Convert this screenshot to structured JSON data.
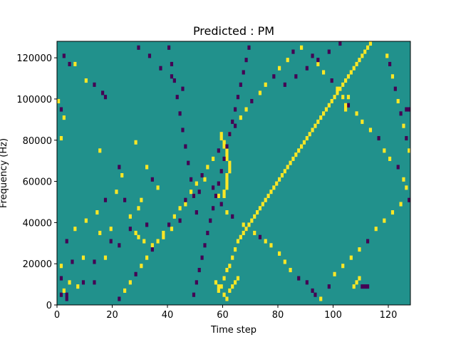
{
  "chart_data": {
    "type": "heatmap",
    "title": "Predicted : PM",
    "xlabel": "Time step",
    "ylabel": "Frequency (Hz)",
    "xlim": [
      0,
      128
    ],
    "ylim": [
      0,
      128000
    ],
    "x_ticks": [
      0,
      20,
      40,
      60,
      80,
      100,
      120
    ],
    "y_ticks": [
      0,
      20000,
      40000,
      60000,
      80000,
      100000,
      120000
    ],
    "n_time_steps": 128,
    "n_freq_bins": 64,
    "value_levels": [
      -1,
      0,
      1
    ],
    "colors": {
      "neg": "#440154",
      "zero": "#21918c",
      "pos": "#fde725"
    },
    "cells": [
      {
        "t": 2,
        "f": 60,
        "v": -1
      },
      {
        "t": 3,
        "f": 1,
        "v": -1
      },
      {
        "t": 3,
        "f": 2,
        "v": -1
      },
      {
        "t": 1,
        "f": 2,
        "v": -1
      },
      {
        "t": 4,
        "f": 58,
        "v": -1
      },
      {
        "t": 6,
        "f": 58,
        "v": 1
      },
      {
        "t": 10,
        "f": 54,
        "v": 1
      },
      {
        "t": 13,
        "f": 53,
        "v": -1
      },
      {
        "t": 16,
        "f": 51,
        "v": -1
      },
      {
        "t": 17,
        "f": 50,
        "v": -1
      },
      {
        "t": 0,
        "f": 49,
        "v": 1
      },
      {
        "t": 1,
        "f": 47,
        "v": -1
      },
      {
        "t": 2,
        "f": 45,
        "v": 1
      },
      {
        "t": 1,
        "f": 40,
        "v": 1
      },
      {
        "t": 15,
        "f": 37,
        "v": 1
      },
      {
        "t": 22,
        "f": 33,
        "v": -1
      },
      {
        "t": 28,
        "f": 39,
        "v": 1
      },
      {
        "t": 32,
        "f": 33,
        "v": 1
      },
      {
        "t": 34,
        "f": 30,
        "v": -1
      },
      {
        "t": 36,
        "f": 28,
        "v": 1
      },
      {
        "t": 30,
        "f": 25,
        "v": 1
      },
      {
        "t": 29,
        "f": 23,
        "v": 1
      },
      {
        "t": 32,
        "f": 19,
        "v": -1
      },
      {
        "t": 26,
        "f": 18,
        "v": -1
      },
      {
        "t": 22,
        "f": 14,
        "v": -1
      },
      {
        "t": 19,
        "f": 18,
        "v": 1
      },
      {
        "t": 15,
        "f": 17,
        "v": 1
      },
      {
        "t": 19,
        "f": 15,
        "v": -1
      },
      {
        "t": 17,
        "f": 11,
        "v": 1
      },
      {
        "t": 13,
        "f": 10,
        "v": -1
      },
      {
        "t": 9,
        "f": 11,
        "v": 1
      },
      {
        "t": 5,
        "f": 10,
        "v": -1
      },
      {
        "t": 1,
        "f": 9,
        "v": 1
      },
      {
        "t": 1,
        "f": 6,
        "v": -1
      },
      {
        "t": 4,
        "f": 5,
        "v": 1
      },
      {
        "t": 7,
        "f": 4,
        "v": 1
      },
      {
        "t": 9,
        "f": 5,
        "v": -1
      },
      {
        "t": 13,
        "f": 5,
        "v": -1
      },
      {
        "t": 2,
        "f": 3,
        "v": 1
      },
      {
        "t": 3,
        "f": 15,
        "v": -1
      },
      {
        "t": 6,
        "f": 18,
        "v": 1
      },
      {
        "t": 10,
        "f": 20,
        "v": 1
      },
      {
        "t": 14,
        "f": 22,
        "v": 1
      },
      {
        "t": 17,
        "f": 25,
        "v": -1
      },
      {
        "t": 21,
        "f": 27,
        "v": 1
      },
      {
        "t": 23,
        "f": 31,
        "v": 1
      },
      {
        "t": 24,
        "f": 25,
        "v": -1
      },
      {
        "t": 26,
        "f": 21,
        "v": 1
      },
      {
        "t": 28,
        "f": 17,
        "v": 1
      },
      {
        "t": 29,
        "f": 16,
        "v": 1
      },
      {
        "t": 31,
        "f": 15,
        "v": 1
      },
      {
        "t": 34,
        "f": 14,
        "v": 1
      },
      {
        "t": 38,
        "f": 16,
        "v": 1
      },
      {
        "t": 41,
        "f": 18,
        "v": 1
      },
      {
        "t": 44,
        "f": 20,
        "v": -1
      },
      {
        "t": 46,
        "f": 24,
        "v": 1
      },
      {
        "t": 49,
        "f": 26,
        "v": 1
      },
      {
        "t": 51,
        "f": 27,
        "v": -1
      },
      {
        "t": 53,
        "f": 30,
        "v": 1
      },
      {
        "t": 56,
        "f": 28,
        "v": -1
      },
      {
        "t": 58,
        "f": 26,
        "v": 1
      },
      {
        "t": 59,
        "f": 24,
        "v": -1
      },
      {
        "t": 61,
        "f": 22,
        "v": 1
      },
      {
        "t": 63,
        "f": 21,
        "v": -1
      },
      {
        "t": 67,
        "f": 19,
        "v": 1
      },
      {
        "t": 68,
        "f": 18,
        "v": -1
      },
      {
        "t": 71,
        "f": 17,
        "v": 1
      },
      {
        "t": 73,
        "f": 16,
        "v": -1
      },
      {
        "t": 75,
        "f": 15,
        "v": 1
      },
      {
        "t": 77,
        "f": 14,
        "v": 1
      },
      {
        "t": 80,
        "f": 12,
        "v": 1
      },
      {
        "t": 82,
        "f": 10,
        "v": 1
      },
      {
        "t": 84,
        "f": 8,
        "v": 1
      },
      {
        "t": 87,
        "f": 6,
        "v": -1
      },
      {
        "t": 90,
        "f": 5,
        "v": -1
      },
      {
        "t": 92,
        "f": 3,
        "v": -1
      },
      {
        "t": 93,
        "f": 2,
        "v": -1
      },
      {
        "t": 95,
        "f": 1,
        "v": 1
      },
      {
        "t": 98,
        "f": 4,
        "v": -1
      },
      {
        "t": 100,
        "f": 7,
        "v": 1
      },
      {
        "t": 103,
        "f": 9,
        "v": 1
      },
      {
        "t": 106,
        "f": 11,
        "v": 1
      },
      {
        "t": 109,
        "f": 13,
        "v": 1
      },
      {
        "t": 112,
        "f": 15,
        "v": -1
      },
      {
        "t": 115,
        "f": 18,
        "v": 1
      },
      {
        "t": 118,
        "f": 20,
        "v": 1
      },
      {
        "t": 121,
        "f": 22,
        "v": 1
      },
      {
        "t": 124,
        "f": 24,
        "v": 1
      },
      {
        "t": 127,
        "f": 25,
        "v": -1
      },
      {
        "t": 126,
        "f": 28,
        "v": 1
      },
      {
        "t": 125,
        "f": 30,
        "v": 1
      },
      {
        "t": 123,
        "f": 33,
        "v": -1
      },
      {
        "t": 120,
        "f": 35,
        "v": 1
      },
      {
        "t": 118,
        "f": 37,
        "v": 1
      },
      {
        "t": 116,
        "f": 40,
        "v": -1
      },
      {
        "t": 113,
        "f": 42,
        "v": 1
      },
      {
        "t": 110,
        "f": 44,
        "v": 1
      },
      {
        "t": 108,
        "f": 46,
        "v": 1
      },
      {
        "t": 105,
        "f": 48,
        "v": -1
      },
      {
        "t": 103,
        "f": 50,
        "v": 1
      },
      {
        "t": 101,
        "f": 52,
        "v": 1
      },
      {
        "t": 99,
        "f": 54,
        "v": -1
      },
      {
        "t": 96,
        "f": 56,
        "v": 1
      },
      {
        "t": 94,
        "f": 58,
        "v": 1
      },
      {
        "t": 92,
        "f": 60,
        "v": -1
      },
      {
        "t": 88,
        "f": 62,
        "v": 1
      },
      {
        "t": 85,
        "f": 61,
        "v": -1
      },
      {
        "t": 83,
        "f": 59,
        "v": 1
      },
      {
        "t": 80,
        "f": 57,
        "v": 1
      },
      {
        "t": 78,
        "f": 55,
        "v": -1
      },
      {
        "t": 75,
        "f": 53,
        "v": 1
      },
      {
        "t": 73,
        "f": 51,
        "v": 1
      },
      {
        "t": 70,
        "f": 49,
        "v": -1
      },
      {
        "t": 68,
        "f": 47,
        "v": 1
      },
      {
        "t": 66,
        "f": 45,
        "v": 1
      },
      {
        "t": 64,
        "f": 43,
        "v": -1
      },
      {
        "t": 62,
        "f": 41,
        "v": 1
      },
      {
        "t": 60,
        "f": 39,
        "v": 1
      },
      {
        "t": 58,
        "f": 37,
        "v": -1
      },
      {
        "t": 56,
        "f": 35,
        "v": 1
      },
      {
        "t": 54,
        "f": 33,
        "v": 1
      },
      {
        "t": 52,
        "f": 31,
        "v": -1
      },
      {
        "t": 50,
        "f": 29,
        "v": 1
      },
      {
        "t": 48,
        "f": 27,
        "v": 1
      },
      {
        "t": 46,
        "f": 25,
        "v": -1
      },
      {
        "t": 44,
        "f": 23,
        "v": 1
      },
      {
        "t": 42,
        "f": 21,
        "v": 1
      },
      {
        "t": 40,
        "f": 19,
        "v": -1
      },
      {
        "t": 38,
        "f": 17,
        "v": 1
      },
      {
        "t": 36,
        "f": 15,
        "v": 1
      },
      {
        "t": 34,
        "f": 13,
        "v": -1
      },
      {
        "t": 32,
        "f": 11,
        "v": 1
      },
      {
        "t": 30,
        "f": 9,
        "v": 1
      },
      {
        "t": 28,
        "f": 7,
        "v": -1
      },
      {
        "t": 26,
        "f": 5,
        "v": 1
      },
      {
        "t": 24,
        "f": 3,
        "v": 1
      },
      {
        "t": 22,
        "f": 1,
        "v": -1
      },
      {
        "t": 59,
        "f": 4,
        "v": 1
      },
      {
        "t": 60,
        "f": 6,
        "v": 1
      },
      {
        "t": 61,
        "f": 8,
        "v": 1
      },
      {
        "t": 62,
        "f": 9,
        "v": 1
      },
      {
        "t": 63,
        "f": 11,
        "v": 1
      },
      {
        "t": 64,
        "f": 13,
        "v": 1
      },
      {
        "t": 65,
        "f": 15,
        "v": 1
      },
      {
        "t": 66,
        "f": 16,
        "v": 1
      },
      {
        "t": 67,
        "f": 17,
        "v": 1
      },
      {
        "t": 68,
        "f": 18,
        "v": 1
      },
      {
        "t": 69,
        "f": 19,
        "v": 1
      },
      {
        "t": 70,
        "f": 20,
        "v": 1
      },
      {
        "t": 71,
        "f": 21,
        "v": 1
      },
      {
        "t": 72,
        "f": 22,
        "v": 1
      },
      {
        "t": 73,
        "f": 23,
        "v": 1
      },
      {
        "t": 74,
        "f": 24,
        "v": 1
      },
      {
        "t": 75,
        "f": 25,
        "v": 1
      },
      {
        "t": 76,
        "f": 26,
        "v": 1
      },
      {
        "t": 77,
        "f": 27,
        "v": 1
      },
      {
        "t": 78,
        "f": 28,
        "v": 1
      },
      {
        "t": 79,
        "f": 29,
        "v": 1
      },
      {
        "t": 80,
        "f": 30,
        "v": 1
      },
      {
        "t": 81,
        "f": 31,
        "v": 1
      },
      {
        "t": 82,
        "f": 32,
        "v": 1
      },
      {
        "t": 83,
        "f": 33,
        "v": 1
      },
      {
        "t": 84,
        "f": 34,
        "v": 1
      },
      {
        "t": 85,
        "f": 35,
        "v": 1
      },
      {
        "t": 86,
        "f": 36,
        "v": 1
      },
      {
        "t": 87,
        "f": 37,
        "v": 1
      },
      {
        "t": 88,
        "f": 38,
        "v": 1
      },
      {
        "t": 89,
        "f": 39,
        "v": 1
      },
      {
        "t": 90,
        "f": 40,
        "v": 1
      },
      {
        "t": 91,
        "f": 41,
        "v": 1
      },
      {
        "t": 92,
        "f": 42,
        "v": 1
      },
      {
        "t": 93,
        "f": 43,
        "v": 1
      },
      {
        "t": 94,
        "f": 44,
        "v": 1
      },
      {
        "t": 95,
        "f": 45,
        "v": 1
      },
      {
        "t": 96,
        "f": 46,
        "v": 1
      },
      {
        "t": 97,
        "f": 47,
        "v": 1
      },
      {
        "t": 98,
        "f": 48,
        "v": 1
      },
      {
        "t": 99,
        "f": 49,
        "v": 1
      },
      {
        "t": 100,
        "f": 50,
        "v": 1
      },
      {
        "t": 101,
        "f": 51,
        "v": 1
      },
      {
        "t": 102,
        "f": 52,
        "v": 1
      },
      {
        "t": 103,
        "f": 53,
        "v": 1
      },
      {
        "t": 104,
        "f": 54,
        "v": 1
      },
      {
        "t": 105,
        "f": 55,
        "v": 1
      },
      {
        "t": 106,
        "f": 56,
        "v": 1
      },
      {
        "t": 107,
        "f": 57,
        "v": 1
      },
      {
        "t": 108,
        "f": 58,
        "v": 1
      },
      {
        "t": 109,
        "f": 59,
        "v": 1
      },
      {
        "t": 110,
        "f": 60,
        "v": 1
      },
      {
        "t": 111,
        "f": 61,
        "v": 1
      },
      {
        "t": 112,
        "f": 62,
        "v": 1
      },
      {
        "t": 113,
        "f": 63,
        "v": 1
      },
      {
        "t": 60,
        "f": 26,
        "v": 1
      },
      {
        "t": 60,
        "f": 27,
        "v": 1
      },
      {
        "t": 61,
        "f": 28,
        "v": 1
      },
      {
        "t": 61,
        "f": 29,
        "v": 1
      },
      {
        "t": 61,
        "f": 30,
        "v": 1
      },
      {
        "t": 61,
        "f": 31,
        "v": 1
      },
      {
        "t": 62,
        "f": 32,
        "v": 1
      },
      {
        "t": 62,
        "f": 33,
        "v": 1
      },
      {
        "t": 62,
        "f": 34,
        "v": 1
      },
      {
        "t": 61,
        "f": 35,
        "v": 1
      },
      {
        "t": 61,
        "f": 36,
        "v": 1
      },
      {
        "t": 61,
        "f": 37,
        "v": 1
      },
      {
        "t": 60,
        "f": 38,
        "v": 1
      },
      {
        "t": 60,
        "f": 39,
        "v": 1
      },
      {
        "t": 59,
        "f": 40,
        "v": 1
      },
      {
        "t": 59,
        "f": 41,
        "v": 1
      },
      {
        "t": 58,
        "f": 3,
        "v": 1
      },
      {
        "t": 58,
        "f": 4,
        "v": 1
      },
      {
        "t": 57,
        "f": 5,
        "v": 1
      },
      {
        "t": 60,
        "f": 2,
        "v": 1
      },
      {
        "t": 61,
        "f": 1,
        "v": 1
      },
      {
        "t": 62,
        "f": 3,
        "v": 1
      },
      {
        "t": 63,
        "f": 4,
        "v": 1
      },
      {
        "t": 64,
        "f": 5,
        "v": 1
      },
      {
        "t": 65,
        "f": 6,
        "v": 1
      },
      {
        "t": 107,
        "f": 4,
        "v": 1
      },
      {
        "t": 108,
        "f": 5,
        "v": 1
      },
      {
        "t": 109,
        "f": 6,
        "v": 1
      },
      {
        "t": 110,
        "f": 4,
        "v": -1
      },
      {
        "t": 111,
        "f": 4,
        "v": -1
      },
      {
        "t": 112,
        "f": 4,
        "v": -1
      },
      {
        "t": 104,
        "f": 47,
        "v": 1
      },
      {
        "t": 104,
        "f": 48,
        "v": 1
      },
      {
        "t": 105,
        "f": 50,
        "v": 1
      },
      {
        "t": 127,
        "f": 47,
        "v": -1
      },
      {
        "t": 126,
        "f": 47,
        "v": -1
      },
      {
        "t": 69,
        "f": 62,
        "v": -1
      },
      {
        "t": 68,
        "f": 59,
        "v": -1
      },
      {
        "t": 67,
        "f": 56,
        "v": -1
      },
      {
        "t": 66,
        "f": 53,
        "v": -1
      },
      {
        "t": 65,
        "f": 50,
        "v": -1
      },
      {
        "t": 64,
        "f": 47,
        "v": -1
      },
      {
        "t": 63,
        "f": 44,
        "v": -1
      },
      {
        "t": 62,
        "f": 41,
        "v": -1
      },
      {
        "t": 61,
        "f": 38,
        "v": -1
      },
      {
        "t": 60,
        "f": 35,
        "v": -1
      },
      {
        "t": 59,
        "f": 32,
        "v": -1
      },
      {
        "t": 58,
        "f": 29,
        "v": -1
      },
      {
        "t": 57,
        "f": 26,
        "v": -1
      },
      {
        "t": 56,
        "f": 23,
        "v": -1
      },
      {
        "t": 55,
        "f": 20,
        "v": -1
      },
      {
        "t": 54,
        "f": 17,
        "v": -1
      },
      {
        "t": 53,
        "f": 14,
        "v": -1
      },
      {
        "t": 52,
        "f": 11,
        "v": -1
      },
      {
        "t": 51,
        "f": 8,
        "v": -1
      },
      {
        "t": 50,
        "f": 5,
        "v": -1
      },
      {
        "t": 49,
        "f": 2,
        "v": -1
      },
      {
        "t": 40,
        "f": 62,
        "v": -1
      },
      {
        "t": 41,
        "f": 58,
        "v": -1
      },
      {
        "t": 42,
        "f": 54,
        "v": -1
      },
      {
        "t": 43,
        "f": 50,
        "v": -1
      },
      {
        "t": 44,
        "f": 46,
        "v": -1
      },
      {
        "t": 45,
        "f": 42,
        "v": -1
      },
      {
        "t": 46,
        "f": 38,
        "v": -1
      },
      {
        "t": 47,
        "f": 34,
        "v": -1
      },
      {
        "t": 48,
        "f": 30,
        "v": -1
      },
      {
        "t": 49,
        "f": 26,
        "v": -1
      },
      {
        "t": 50,
        "f": 22,
        "v": -1
      },
      {
        "t": 29,
        "f": 62,
        "v": -1
      },
      {
        "t": 33,
        "f": 60,
        "v": -1
      },
      {
        "t": 37,
        "f": 57,
        "v": -1
      },
      {
        "t": 41,
        "f": 55,
        "v": -1
      },
      {
        "t": 45,
        "f": 52,
        "v": -1
      },
      {
        "t": 82,
        "f": 53,
        "v": -1
      },
      {
        "t": 86,
        "f": 55,
        "v": -1
      },
      {
        "t": 90,
        "f": 57,
        "v": -1
      },
      {
        "t": 94,
        "f": 59,
        "v": -1
      },
      {
        "t": 98,
        "f": 61,
        "v": -1
      },
      {
        "t": 102,
        "f": 63,
        "v": -1
      },
      {
        "t": 119,
        "f": 60,
        "v": 1
      },
      {
        "t": 120,
        "f": 58,
        "v": -1
      },
      {
        "t": 121,
        "f": 55,
        "v": 1
      },
      {
        "t": 122,
        "f": 52,
        "v": -1
      },
      {
        "t": 123,
        "f": 49,
        "v": 1
      },
      {
        "t": 124,
        "f": 46,
        "v": -1
      },
      {
        "t": 125,
        "f": 43,
        "v": 1
      },
      {
        "t": 126,
        "f": 40,
        "v": -1
      },
      {
        "t": 127,
        "f": 37,
        "v": 1
      }
    ]
  }
}
